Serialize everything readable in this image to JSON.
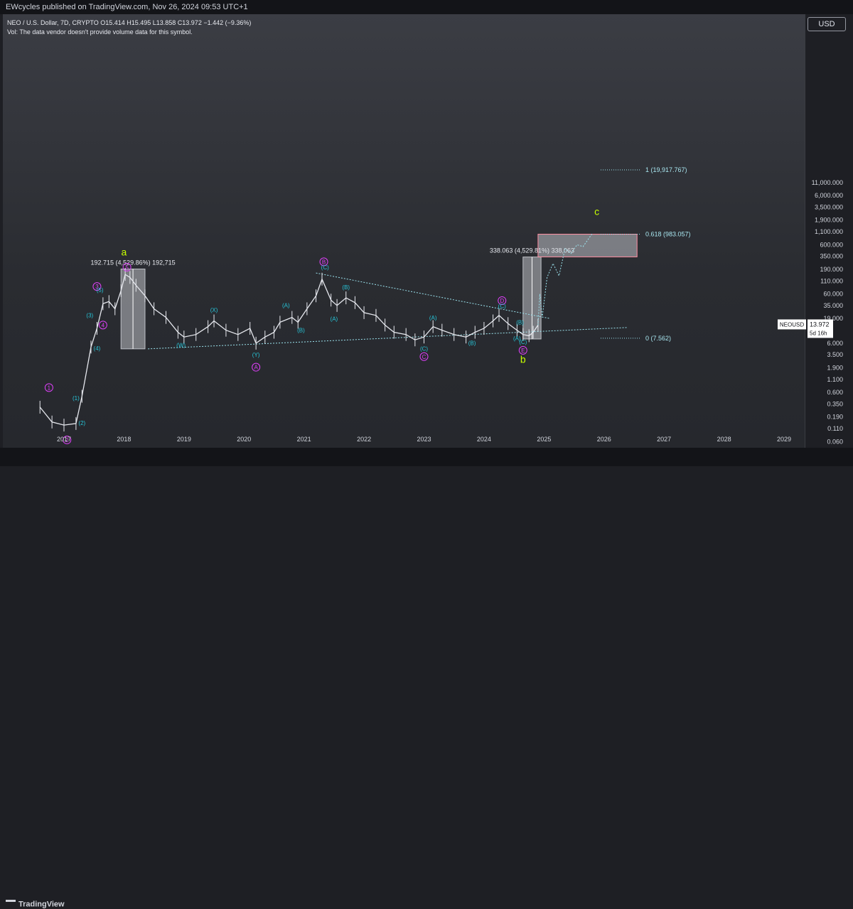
{
  "header": {
    "published": "EWcycles published on TradingView.com, Nov 26, 2024 09:53 UTC+1",
    "symbol_line": "NEO / U.S. Dollar, 7D, CRYPTO  O15.414  H15.495  L13.858  C13.972  −1.442 (−9.36%)",
    "vol_line": "Vol: The data vendor doesn't provide volume data for this symbol."
  },
  "currency_button": "USD",
  "footer": {
    "brand": "TradingView"
  },
  "colors": {
    "background": "#1e1f24",
    "candles": "#e6e8ee",
    "cyan_labels": "#26c6da",
    "magenta_labels": "#e040fb",
    "green_labels": "#c6ff00",
    "fib_text": "#a8e6f0"
  },
  "chart_data": {
    "type": "line",
    "symbol": "NEOUSD",
    "interval": "7D",
    "scale": "log",
    "grid": false,
    "xlim": [
      2016.5,
      2029.5
    ],
    "ylim": [
      0.045,
      29000000
    ],
    "x_ticks": [
      "2017",
      "2018",
      "2019",
      "2020",
      "2021",
      "2022",
      "2023",
      "2024",
      "2025",
      "2026",
      "2027",
      "2028",
      "2029"
    ],
    "y_ticks": [
      {
        "label": "11,000.000",
        "value": 11000
      },
      {
        "label": "6,000.000",
        "value": 6000
      },
      {
        "label": "3,500.000",
        "value": 3500
      },
      {
        "label": "1,900.000",
        "value": 1900
      },
      {
        "label": "1,100.000",
        "value": 1100
      },
      {
        "label": "600.000",
        "value": 600
      },
      {
        "label": "350.000",
        "value": 350
      },
      {
        "label": "190.000",
        "value": 190
      },
      {
        "label": "110.000",
        "value": 110
      },
      {
        "label": "60.000",
        "value": 60
      },
      {
        "label": "35.000",
        "value": 35
      },
      {
        "label": "19.000",
        "value": 19
      },
      {
        "label": "6.000",
        "value": 6
      },
      {
        "label": "3.500",
        "value": 3.5
      },
      {
        "label": "1.900",
        "value": 1.9
      },
      {
        "label": "1.100",
        "value": 1.1
      },
      {
        "label": "0.600",
        "value": 0.6
      },
      {
        "label": "0.350",
        "value": 0.35
      },
      {
        "label": "0.190",
        "value": 0.19
      },
      {
        "label": "0.110",
        "value": 0.11
      },
      {
        "label": "0.060",
        "value": 0.06
      }
    ],
    "last_price": {
      "symbol": "NEOUSD",
      "value": "13.972",
      "countdown": "5d 16h"
    },
    "series": [
      {
        "values": [
          [
            2016.6,
            0.3
          ],
          [
            2016.8,
            0.15
          ],
          [
            2017.0,
            0.13
          ],
          [
            2017.2,
            0.14
          ],
          [
            2017.3,
            0.5
          ],
          [
            2017.45,
            5
          ],
          [
            2017.55,
            12
          ],
          [
            2017.65,
            38
          ],
          [
            2017.75,
            42
          ],
          [
            2017.85,
            30
          ],
          [
            2017.95,
            70
          ],
          [
            2018.02,
            150
          ],
          [
            2018.1,
            130
          ],
          [
            2018.2,
            90
          ],
          [
            2018.35,
            55
          ],
          [
            2018.5,
            30
          ],
          [
            2018.7,
            20
          ],
          [
            2018.9,
            10
          ],
          [
            2019.0,
            8
          ],
          [
            2019.2,
            9
          ],
          [
            2019.4,
            13
          ],
          [
            2019.5,
            17
          ],
          [
            2019.7,
            11
          ],
          [
            2019.9,
            9
          ],
          [
            2020.1,
            12
          ],
          [
            2020.2,
            6
          ],
          [
            2020.35,
            8
          ],
          [
            2020.5,
            10
          ],
          [
            2020.6,
            16
          ],
          [
            2020.8,
            20
          ],
          [
            2020.9,
            16
          ],
          [
            2021.05,
            30
          ],
          [
            2021.2,
            55
          ],
          [
            2021.3,
            120
          ],
          [
            2021.45,
            45
          ],
          [
            2021.55,
            35
          ],
          [
            2021.7,
            50
          ],
          [
            2021.85,
            40
          ],
          [
            2022.0,
            25
          ],
          [
            2022.2,
            22
          ],
          [
            2022.35,
            14
          ],
          [
            2022.5,
            10
          ],
          [
            2022.7,
            9
          ],
          [
            2022.85,
            7
          ],
          [
            2023.0,
            8
          ],
          [
            2023.15,
            13
          ],
          [
            2023.3,
            11
          ],
          [
            2023.5,
            9
          ],
          [
            2023.7,
            8
          ],
          [
            2023.85,
            10
          ],
          [
            2024.0,
            12
          ],
          [
            2024.15,
            17
          ],
          [
            2024.25,
            22
          ],
          [
            2024.4,
            15
          ],
          [
            2024.55,
            11
          ],
          [
            2024.65,
            9
          ],
          [
            2024.75,
            8.5
          ],
          [
            2024.82,
            10
          ],
          [
            2024.9,
            13.972
          ]
        ]
      },
      {
        "values": [
          [
            2024.9,
            13.972
          ],
          [
            2024.93,
            60
          ],
          [
            2024.97,
            20
          ],
          [
            2025.05,
            130
          ],
          [
            2025.15,
            250
          ],
          [
            2025.25,
            140
          ],
          [
            2025.35,
            500
          ],
          [
            2025.45,
            400
          ],
          [
            2025.55,
            600
          ],
          [
            2025.65,
            550
          ],
          [
            2025.8,
            1000
          ]
        ]
      }
    ],
    "lines": [
      {
        "from": [
          2018.4,
          4.6
        ],
        "to": [
          2026.4,
          12.5
        ]
      },
      {
        "from": [
          2021.2,
          160
        ],
        "to": [
          2025.1,
          19
        ]
      }
    ],
    "boxes": [
      {
        "x": [
          2017.95,
          2018.35
        ],
        "y": [
          4.6,
          192.715
        ],
        "label": "192.715 (4,529.86%) 192,715"
      },
      {
        "x": [
          2024.65,
          2024.95
        ],
        "y": [
          7.3,
          338.063
        ],
        "label": "338.063 (4,529.81%) 338,063"
      },
      {
        "x": [
          2024.9,
          2026.55
        ],
        "y": [
          340,
          983.057
        ],
        "label": ""
      }
    ],
    "fib_levels": [
      {
        "label": "1 (19,917.767)",
        "value": 19917.767
      },
      {
        "label": "0.618 (983.057)",
        "value": 983.057
      },
      {
        "label": "0 (7.562)",
        "value": 7.562
      }
    ],
    "annotations": [
      {
        "text": "1",
        "x": 2016.75,
        "y": 0.75,
        "kind": "magenta-circle"
      },
      {
        "text": "2",
        "x": 2017.05,
        "y": 0.065,
        "kind": "magenta-circle"
      },
      {
        "text": "3",
        "x": 2017.55,
        "y": 85,
        "kind": "magenta-circle"
      },
      {
        "text": "4",
        "x": 2017.65,
        "y": 14,
        "kind": "magenta-circle"
      },
      {
        "text": "5",
        "x": 2018.05,
        "y": 210,
        "kind": "magenta-circle"
      },
      {
        "text": "(1)",
        "x": 2017.2,
        "y": 0.42,
        "kind": "cyan"
      },
      {
        "text": "(2)",
        "x": 2017.3,
        "y": 0.13,
        "kind": "cyan"
      },
      {
        "text": "(3)",
        "x": 2017.43,
        "y": 20,
        "kind": "cyan"
      },
      {
        "text": "(4)",
        "x": 2017.55,
        "y": 4.3,
        "kind": "cyan"
      },
      {
        "text": "(5)",
        "x": 2017.6,
        "y": 65,
        "kind": "cyan"
      },
      {
        "text": "a",
        "x": 2018.0,
        "y": 360,
        "kind": "green"
      },
      {
        "text": "(W)",
        "x": 2018.95,
        "y": 5,
        "kind": "cyan"
      },
      {
        "text": "(X)",
        "x": 2019.5,
        "y": 26,
        "kind": "cyan"
      },
      {
        "text": "(Y)",
        "x": 2020.2,
        "y": 3.2,
        "kind": "cyan"
      },
      {
        "text": "A",
        "x": 2020.2,
        "y": 1.95,
        "kind": "magenta-circle"
      },
      {
        "text": "(A)",
        "x": 2020.7,
        "y": 32,
        "kind": "cyan"
      },
      {
        "text": "(B)",
        "x": 2020.95,
        "y": 10,
        "kind": "cyan"
      },
      {
        "text": "B",
        "x": 2021.33,
        "y": 270,
        "kind": "magenta-circle"
      },
      {
        "text": "(C)",
        "x": 2021.35,
        "y": 190,
        "kind": "cyan"
      },
      {
        "text": "(A)",
        "x": 2021.5,
        "y": 17,
        "kind": "cyan"
      },
      {
        "text": "(B)",
        "x": 2021.7,
        "y": 75,
        "kind": "cyan"
      },
      {
        "text": "(A)",
        "x": 2023.15,
        "y": 18,
        "kind": "cyan"
      },
      {
        "text": "(B)",
        "x": 2023.8,
        "y": 5.5,
        "kind": "cyan"
      },
      {
        "text": "(C)",
        "x": 2023.0,
        "y": 4.2,
        "kind": "cyan"
      },
      {
        "text": "C",
        "x": 2023.0,
        "y": 3.2,
        "kind": "magenta-circle"
      },
      {
        "text": "D",
        "x": 2024.3,
        "y": 44,
        "kind": "magenta-circle"
      },
      {
        "text": "(C)",
        "x": 2024.3,
        "y": 31,
        "kind": "cyan"
      },
      {
        "text": "(B)",
        "x": 2024.6,
        "y": 14.5,
        "kind": "cyan"
      },
      {
        "text": "(A)",
        "x": 2024.55,
        "y": 6.8,
        "kind": "cyan"
      },
      {
        "text": "(C)",
        "x": 2024.65,
        "y": 5.8,
        "kind": "cyan"
      },
      {
        "text": "E",
        "x": 2024.65,
        "y": 4.3,
        "kind": "magenta-circle"
      },
      {
        "text": "b",
        "x": 2024.65,
        "y": 2.4,
        "kind": "green"
      },
      {
        "text": "c",
        "x": 2025.88,
        "y": 2400,
        "kind": "green"
      }
    ]
  }
}
